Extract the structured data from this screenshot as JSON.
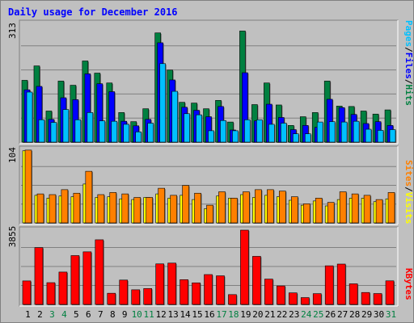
{
  "title": "Daily usage for December 2016",
  "colors": {
    "background": "#c0c0c0",
    "plot_bg": "#c0c0c0",
    "title": "#0000ff",
    "pages": "#00c0ff",
    "files": "#0000ff",
    "hits": "#008040",
    "visits": "#ffff00",
    "sites": "#ff8000",
    "kbytes": "#ff0000",
    "weekend_label": "#008040",
    "weekday_label": "#000000"
  },
  "chart_data": [
    {
      "type": "bar",
      "title": "Daily usage for December 2016",
      "panel": "hits-files-pages",
      "ymax_label": "313",
      "ymax": 313,
      "legend": [
        "Pages",
        "Files",
        "Hits"
      ],
      "categories": [
        "1",
        "2",
        "3",
        "4",
        "5",
        "6",
        "7",
        "8",
        "9",
        "10",
        "11",
        "12",
        "13",
        "14",
        "15",
        "16",
        "17",
        "18",
        "19",
        "20",
        "21",
        "22",
        "23",
        "24",
        "25",
        "26",
        "27",
        "28",
        "29",
        "30",
        "31"
      ],
      "series": [
        {
          "name": "Hits",
          "values": [
            163,
            201,
            82,
            161,
            150,
            214,
            182,
            156,
            78,
            54,
            88,
            288,
            190,
            105,
            103,
            88,
            110,
            53,
            293,
            99,
            156,
            98,
            44,
            67,
            78,
            161,
            95,
            94,
            82,
            74,
            85
          ]
        },
        {
          "name": "Files",
          "values": [
            138,
            147,
            60,
            117,
            112,
            180,
            154,
            133,
            55,
            43,
            60,
            262,
            164,
            92,
            84,
            67,
            94,
            32,
            183,
            56,
            100,
            65,
            33,
            44,
            39,
            113,
            91,
            73,
            49,
            54,
            44
          ]
        },
        {
          "name": "Pages",
          "values": [
            132,
            59,
            52,
            86,
            59,
            78,
            56,
            55,
            47,
            27,
            50,
            207,
            134,
            75,
            72,
            30,
            57,
            30,
            59,
            59,
            47,
            50,
            22,
            22,
            53,
            54,
            53,
            55,
            34,
            31,
            33
          ]
        }
      ]
    },
    {
      "type": "bar",
      "panel": "visits-sites",
      "ymax_label": "104",
      "ymax": 104,
      "legend": [
        "Sites",
        "Visits"
      ],
      "categories": [
        "1",
        "2",
        "3",
        "4",
        "5",
        "6",
        "7",
        "8",
        "9",
        "10",
        "11",
        "12",
        "13",
        "14",
        "15",
        "16",
        "17",
        "18",
        "19",
        "20",
        "21",
        "22",
        "23",
        "24",
        "25",
        "26",
        "27",
        "28",
        "29",
        "30",
        "31"
      ],
      "series": [
        {
          "name": "Visits",
          "values": [
            102,
            39,
            35,
            38,
            37,
            55,
            36,
            37,
            34,
            33,
            36,
            41,
            35,
            39,
            33,
            20,
            38,
            35,
            40,
            36,
            39,
            37,
            32,
            25,
            31,
            24,
            33,
            35,
            35,
            30,
            34
          ]
        },
        {
          "name": "Sites",
          "values": [
            103,
            41,
            40,
            47,
            42,
            73,
            40,
            43,
            41,
            36,
            36,
            49,
            39,
            53,
            42,
            25,
            44,
            35,
            44,
            47,
            47,
            45,
            37,
            27,
            35,
            29,
            44,
            41,
            39,
            33,
            43
          ]
        }
      ]
    },
    {
      "type": "bar",
      "panel": "kbytes",
      "ymax_label": "3855",
      "ymax": 3855,
      "legend": [
        "KBytes"
      ],
      "categories": [
        "1",
        "2",
        "3",
        "4",
        "5",
        "6",
        "7",
        "8",
        "9",
        "10",
        "11",
        "12",
        "13",
        "14",
        "15",
        "16",
        "17",
        "18",
        "19",
        "20",
        "21",
        "22",
        "23",
        "24",
        "25",
        "26",
        "27",
        "28",
        "29",
        "30",
        "31"
      ],
      "series": [
        {
          "name": "KBytes",
          "values": [
            1220,
            2950,
            1130,
            1680,
            2535,
            2730,
            3355,
            580,
            1265,
            760,
            825,
            2105,
            2145,
            1285,
            1120,
            1550,
            1485,
            510,
            3855,
            2495,
            1315,
            960,
            600,
            355,
            560,
            2005,
            2095,
            1070,
            620,
            565,
            1225
          ]
        }
      ]
    }
  ],
  "x_labels": [
    "1",
    "2",
    "3",
    "4",
    "5",
    "6",
    "7",
    "8",
    "9",
    "10",
    "11",
    "12",
    "13",
    "14",
    "15",
    "16",
    "17",
    "18",
    "19",
    "20",
    "21",
    "22",
    "23",
    "24",
    "25",
    "26",
    "27",
    "28",
    "29",
    "30",
    "31"
  ],
  "weekend_days": [
    3,
    4,
    10,
    11,
    17,
    18,
    24,
    25,
    31
  ]
}
